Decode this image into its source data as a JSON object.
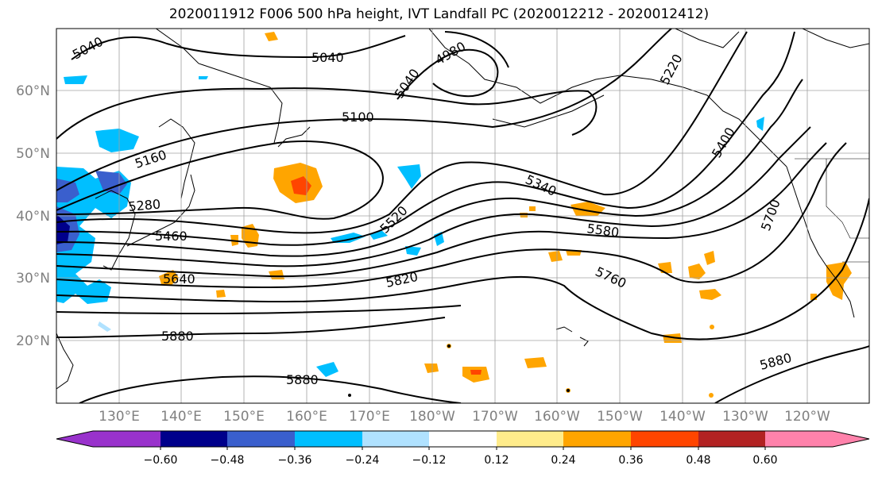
{
  "title": "2020011912 F006 500 hPa height, IVT Landfall PC (2020012212 - 2020012412)",
  "map": {
    "lat_labels": [
      "60°N",
      "50°N",
      "40°N",
      "30°N",
      "20°N"
    ],
    "lon_labels": [
      "130°E",
      "140°E",
      "150°E",
      "160°E",
      "170°E",
      "180°W",
      "170°W",
      "160°W",
      "150°W",
      "140°W",
      "130°W",
      "120°W"
    ],
    "contour_labels": [
      "5040",
      "5040",
      "4980",
      "5040",
      "5220",
      "5100",
      "5160",
      "5340",
      "5400",
      "5280",
      "5520",
      "5580",
      "5460",
      "5700",
      "5640",
      "5820",
      "5760",
      "5880",
      "5880",
      "5880"
    ],
    "contour_color": "#000000",
    "grid_color": "#a0a0a0"
  },
  "colorbar": {
    "ticks": [
      "−0.60",
      "−0.48",
      "−0.36",
      "−0.24",
      "−0.12",
      "0.12",
      "0.24",
      "0.36",
      "0.48",
      "0.60"
    ],
    "colors": [
      "#9932cc",
      "#00008b",
      "#3a5fcd",
      "#00bfff",
      "#b0e2ff",
      "#ffffff",
      "#ffec8b",
      "#ffa500",
      "#ff4500",
      "#b22222",
      "#ff82ab"
    ]
  }
}
